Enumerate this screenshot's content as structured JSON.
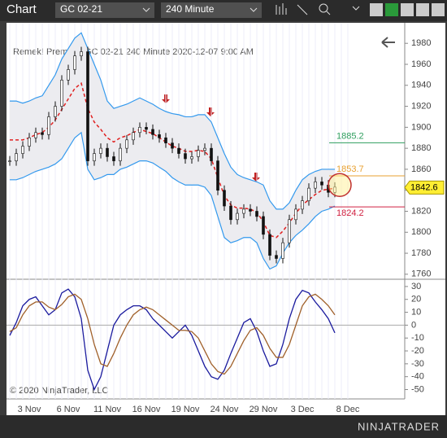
{
  "toolbar": {
    "tab": "Chart",
    "instrument": "GC 02-21",
    "interval": "240 Minute"
  },
  "chart_data": {
    "type": "candlestick_bars",
    "title": "Remek!  Premium  GC 02-21  240 Minute  2020-12-07 9:00 AM",
    "copyright": "© 2020 NinjaTrader, LLC",
    "brand": "NINJATRADER",
    "categories": [
      null,
      null,
      null,
      "3 Nov",
      null,
      null,
      null,
      null,
      null,
      "6 Nov",
      null,
      null,
      null,
      null,
      null,
      "11 Nov",
      null,
      null,
      null,
      null,
      null,
      "16 Nov",
      null,
      null,
      null,
      null,
      null,
      "19 Nov",
      null,
      null,
      null,
      null,
      null,
      "24 Nov",
      null,
      null,
      null,
      null,
      null,
      "29 Nov",
      null,
      null,
      null,
      null,
      null,
      "3 Dec",
      null,
      null,
      null,
      null,
      null,
      null,
      "8 Dec"
    ],
    "close": [
      1868,
      1875,
      1882,
      1890,
      1895,
      1893,
      1910,
      1920,
      1945,
      1955,
      1968,
      1972,
      1868,
      1875,
      1880,
      1872,
      1868,
      1880,
      1888,
      1895,
      1900,
      1898,
      1893,
      1890,
      1885,
      1880,
      1875,
      1870,
      1872,
      1878,
      1880,
      1868,
      1840,
      1825,
      1812,
      1818,
      1822,
      1820,
      1815,
      1798,
      1778,
      1775,
      1790,
      1812,
      1822,
      1830,
      1842,
      1848,
      1845,
      1838,
      1843,
      null,
      null
    ],
    "bands": [
      {
        "color": "#3399ee",
        "values": [
          1925,
          1925,
          1923,
          1925,
          1928,
          1930,
          1940,
          1950,
          1965,
          1975,
          1985,
          1990,
          1975,
          1960,
          1945,
          1925,
          1918,
          1920,
          1922,
          1925,
          1928,
          1925,
          1922,
          1918,
          1915,
          1913,
          1912,
          1910,
          1910,
          1912,
          1912,
          1905,
          1890,
          1875,
          1862,
          1855,
          1852,
          1850,
          1848,
          1845,
          1830,
          1822,
          1822,
          1828,
          1840,
          1850,
          1855,
          1858,
          1860,
          1860,
          1860,
          null,
          null
        ]
      },
      {
        "color": "#3399ee",
        "values": [
          1850,
          1850,
          1852,
          1855,
          1858,
          1860,
          1862,
          1865,
          1870,
          1880,
          1890,
          1895,
          1860,
          1850,
          1852,
          1855,
          1855,
          1860,
          1862,
          1865,
          1868,
          1868,
          1866,
          1862,
          1858,
          1852,
          1848,
          1845,
          1845,
          1845,
          1843,
          1835,
          1815,
          1795,
          1790,
          1792,
          1795,
          1795,
          1790,
          1775,
          1765,
          1768,
          1780,
          1790,
          1797,
          1802,
          1808,
          1815,
          1820,
          1822,
          1825,
          null,
          null
        ]
      },
      {
        "color": "#e02020",
        "dashed": true,
        "values": [
          1888,
          1888,
          1888,
          1890,
          1893,
          1895,
          1900,
          1907,
          1917,
          1927,
          1937,
          1942,
          1918,
          1905,
          1898,
          1890,
          1886,
          1890,
          1892,
          1895,
          1898,
          1896,
          1894,
          1890,
          1886,
          1882,
          1880,
          1877,
          1877,
          1878,
          1877,
          1870,
          1852,
          1835,
          1826,
          1823,
          1823,
          1822,
          1819,
          1810,
          1797,
          1795,
          1801,
          1809,
          1818,
          1826,
          1831,
          1836,
          1840,
          1841,
          1842,
          null,
          null
        ]
      }
    ],
    "ylim": [
      1756,
      1998
    ],
    "yticks": [
      1760,
      1780,
      1800,
      1820,
      1840,
      1860,
      1880,
      1900,
      1920,
      1940,
      1960,
      1980
    ],
    "levels": [
      {
        "value": 1885.2,
        "color": "#2e9e5e"
      },
      {
        "value": 1853.7,
        "color": "#e8a030"
      },
      {
        "value": 1824.2,
        "color": "#d02040"
      }
    ],
    "last_price": 1842.6,
    "oscillator": {
      "ylim": [
        -56,
        35
      ],
      "yticks": [
        30,
        20,
        10,
        0,
        -10,
        -20,
        -30,
        -40,
        -50
      ],
      "series": [
        {
          "color": "#1a1a9e",
          "values": [
            -8,
            2,
            15,
            20,
            22,
            15,
            8,
            12,
            25,
            28,
            22,
            5,
            -35,
            -50,
            -40,
            -20,
            0,
            8,
            12,
            15,
            15,
            12,
            5,
            0,
            -5,
            -10,
            -5,
            0,
            -8,
            -20,
            -32,
            -40,
            -42,
            -35,
            -22,
            -10,
            2,
            5,
            -5,
            -20,
            -32,
            -30,
            -15,
            5,
            20,
            27,
            25,
            18,
            12,
            5,
            -6,
            null,
            null
          ]
        },
        {
          "color": "#a0602a",
          "values": [
            -5,
            -2,
            8,
            15,
            18,
            18,
            14,
            12,
            16,
            22,
            24,
            20,
            5,
            -15,
            -30,
            -32,
            -22,
            -10,
            0,
            8,
            12,
            14,
            12,
            8,
            4,
            0,
            -4,
            -4,
            -5,
            -10,
            -20,
            -30,
            -36,
            -38,
            -32,
            -22,
            -12,
            -4,
            -2,
            -8,
            -18,
            -25,
            -25,
            -15,
            0,
            15,
            22,
            24,
            20,
            15,
            8,
            null,
            null
          ]
        }
      ]
    }
  }
}
